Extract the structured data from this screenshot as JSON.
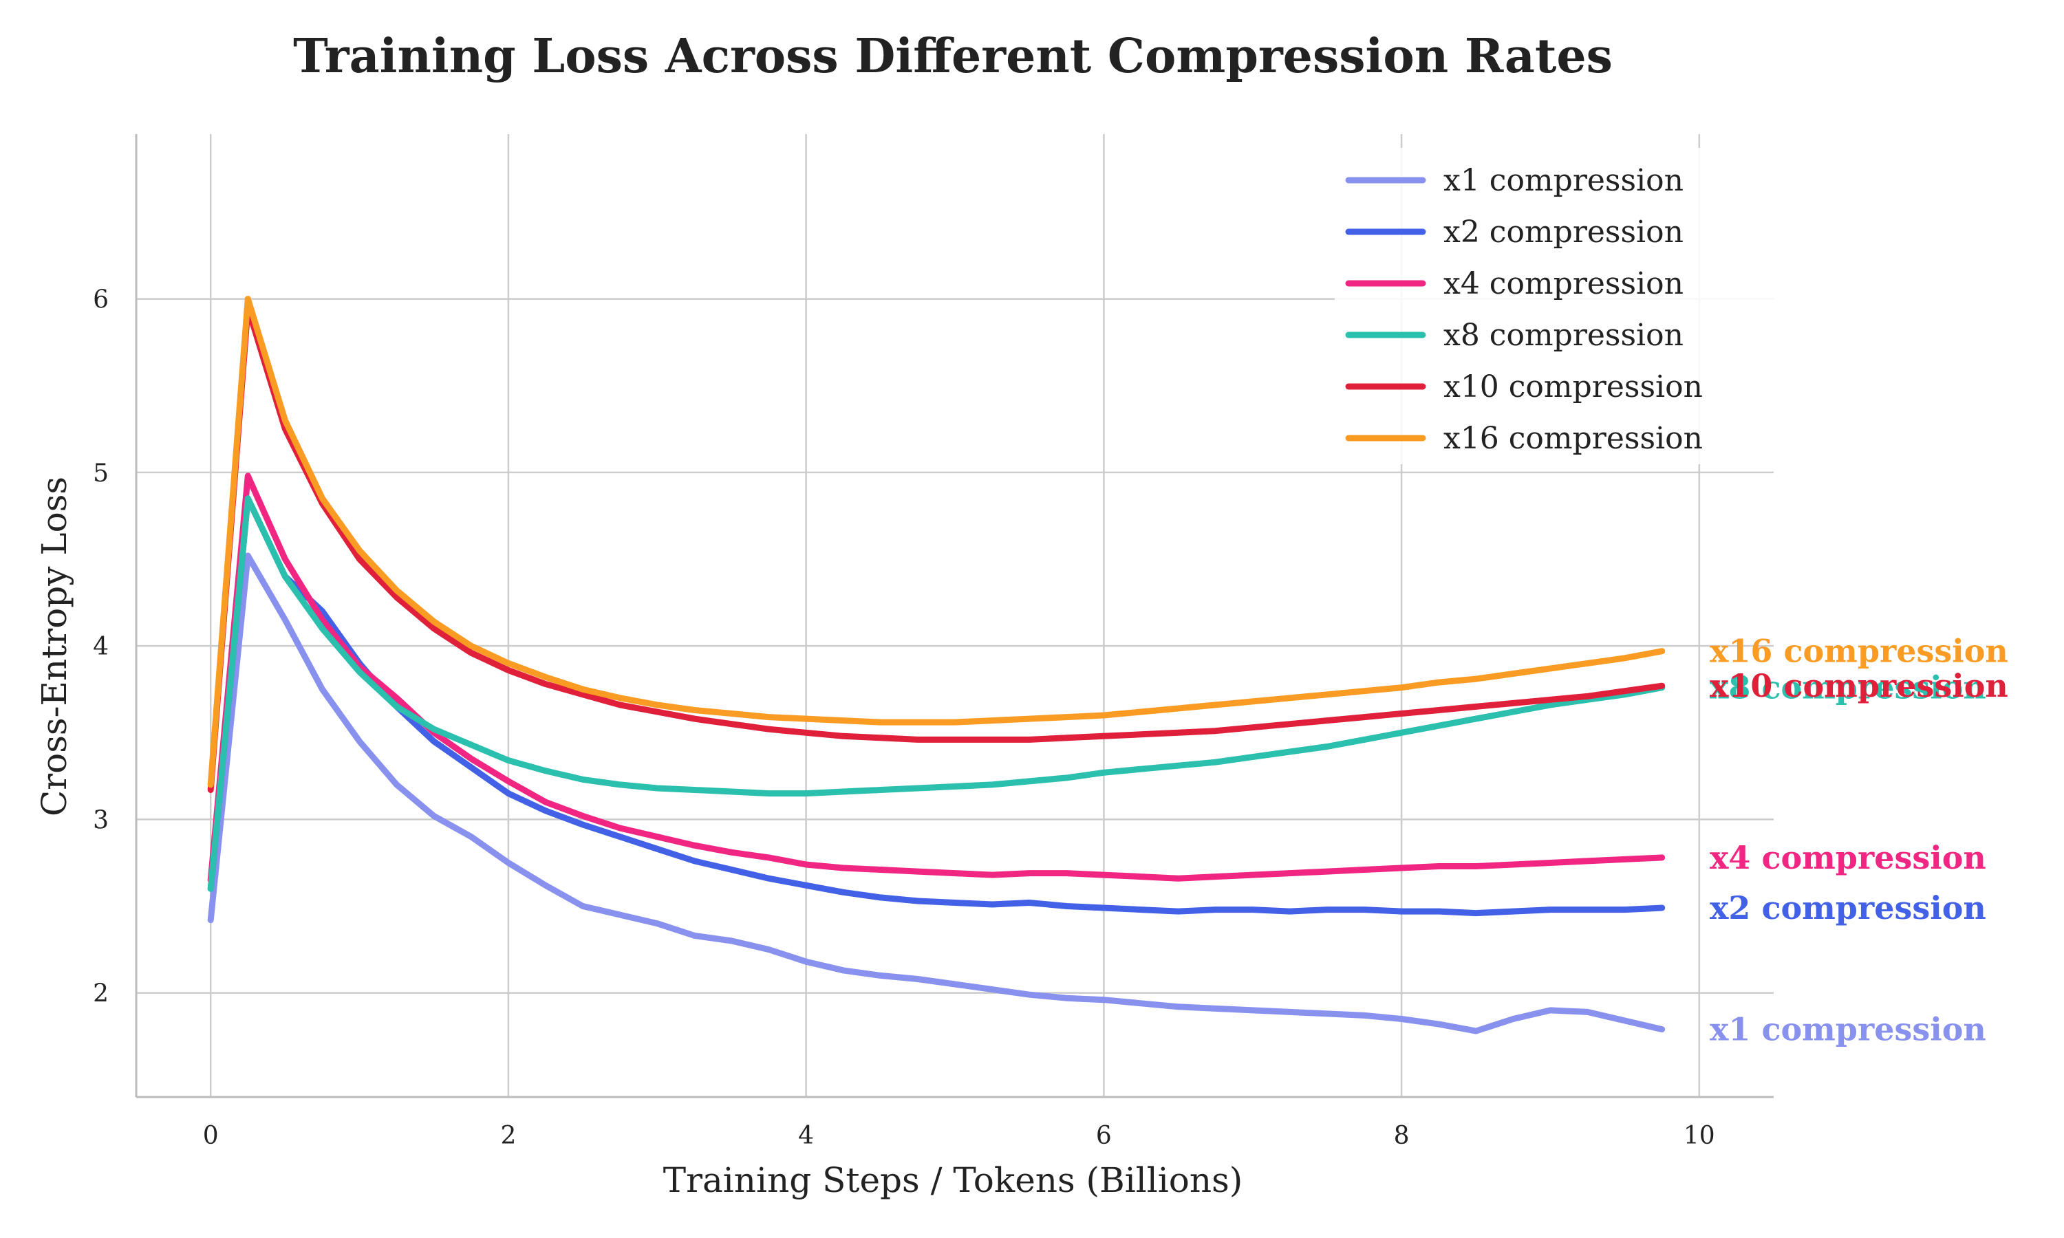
{
  "chart_data": {
    "type": "line",
    "title": "Training Loss Across Different Compression Rates",
    "xlabel": "Training Steps / Tokens (Billions)",
    "ylabel": "Cross-Entropy Loss",
    "xlim": [
      -0.5,
      10.5
    ],
    "ylim": [
      1.4,
      6.95
    ],
    "xticks": [
      0,
      2,
      4,
      6,
      8,
      10
    ],
    "yticks": [
      2,
      3,
      4,
      5,
      6
    ],
    "grid": true,
    "legend_position": "top-right",
    "series": [
      {
        "name": "x1 compression",
        "end_label": "x1 compression",
        "color": "#8891ee",
        "x": [
          0,
          0.25,
          0.5,
          0.75,
          1.0,
          1.25,
          1.5,
          1.75,
          2.0,
          2.25,
          2.5,
          2.75,
          3.0,
          3.25,
          3.5,
          3.75,
          4.0,
          4.25,
          4.5,
          4.75,
          5.0,
          5.25,
          5.5,
          5.75,
          6.0,
          6.25,
          6.5,
          6.75,
          7.0,
          7.25,
          7.5,
          7.75,
          8.0,
          8.25,
          8.5,
          8.75,
          9.0,
          9.25,
          9.5,
          9.75
        ],
        "y": [
          2.42,
          4.52,
          4.15,
          3.75,
          3.45,
          3.2,
          3.02,
          2.9,
          2.75,
          2.62,
          2.5,
          2.45,
          2.4,
          2.33,
          2.3,
          2.25,
          2.18,
          2.13,
          2.1,
          2.08,
          2.05,
          2.02,
          1.99,
          1.97,
          1.96,
          1.94,
          1.92,
          1.91,
          1.9,
          1.89,
          1.88,
          1.87,
          1.85,
          1.82,
          1.78,
          1.85,
          1.9,
          1.89,
          1.84,
          1.79
        ]
      },
      {
        "name": "x2 compression",
        "end_label": "x2 compression",
        "color": "#4361e6",
        "x": [
          0,
          0.25,
          0.5,
          0.75,
          1.0,
          1.25,
          1.5,
          1.75,
          2.0,
          2.25,
          2.5,
          2.75,
          3.0,
          3.25,
          3.5,
          3.75,
          4.0,
          4.25,
          4.5,
          4.75,
          5.0,
          5.25,
          5.5,
          5.75,
          6.0,
          6.25,
          6.5,
          6.75,
          7.0,
          7.25,
          7.5,
          7.75,
          8.0,
          8.25,
          8.5,
          8.75,
          9.0,
          9.25,
          9.5,
          9.75
        ],
        "y": [
          2.6,
          4.85,
          4.4,
          4.2,
          3.9,
          3.65,
          3.45,
          3.3,
          3.15,
          3.05,
          2.97,
          2.9,
          2.83,
          2.76,
          2.71,
          2.66,
          2.62,
          2.58,
          2.55,
          2.53,
          2.52,
          2.51,
          2.52,
          2.5,
          2.49,
          2.48,
          2.47,
          2.48,
          2.48,
          2.47,
          2.48,
          2.48,
          2.47,
          2.47,
          2.46,
          2.47,
          2.48,
          2.48,
          2.48,
          2.49
        ]
      },
      {
        "name": "x4 compression",
        "end_label": "x4 compression",
        "color": "#f02682",
        "x": [
          0,
          0.25,
          0.5,
          0.75,
          1.0,
          1.25,
          1.5,
          1.75,
          2.0,
          2.25,
          2.5,
          2.75,
          3.0,
          3.25,
          3.5,
          3.75,
          4.0,
          4.25,
          4.5,
          4.75,
          5.0,
          5.25,
          5.5,
          5.75,
          6.0,
          6.25,
          6.5,
          6.75,
          7.0,
          7.25,
          7.5,
          7.75,
          8.0,
          8.25,
          8.5,
          8.75,
          9.0,
          9.25,
          9.5,
          9.75
        ],
        "y": [
          2.65,
          4.98,
          4.5,
          4.15,
          3.88,
          3.7,
          3.5,
          3.35,
          3.22,
          3.1,
          3.02,
          2.95,
          2.9,
          2.85,
          2.81,
          2.78,
          2.74,
          2.72,
          2.71,
          2.7,
          2.69,
          2.68,
          2.69,
          2.69,
          2.68,
          2.67,
          2.66,
          2.67,
          2.68,
          2.69,
          2.7,
          2.71,
          2.72,
          2.73,
          2.73,
          2.74,
          2.75,
          2.76,
          2.77,
          2.78
        ]
      },
      {
        "name": "x8 compression",
        "end_label": "x8 compression",
        "color": "#2bbfad",
        "x": [
          0,
          0.25,
          0.5,
          0.75,
          1.0,
          1.25,
          1.5,
          1.75,
          2.0,
          2.25,
          2.5,
          2.75,
          3.0,
          3.25,
          3.5,
          3.75,
          4.0,
          4.25,
          4.5,
          4.75,
          5.0,
          5.25,
          5.5,
          5.75,
          6.0,
          6.25,
          6.5,
          6.75,
          7.0,
          7.25,
          7.5,
          7.75,
          8.0,
          8.25,
          8.5,
          8.75,
          9.0,
          9.25,
          9.5,
          9.75
        ],
        "y": [
          2.6,
          4.85,
          4.4,
          4.1,
          3.85,
          3.65,
          3.52,
          3.43,
          3.34,
          3.28,
          3.23,
          3.2,
          3.18,
          3.17,
          3.16,
          3.15,
          3.15,
          3.16,
          3.17,
          3.18,
          3.19,
          3.2,
          3.22,
          3.24,
          3.27,
          3.29,
          3.31,
          3.33,
          3.36,
          3.39,
          3.42,
          3.46,
          3.5,
          3.54,
          3.58,
          3.62,
          3.66,
          3.69,
          3.72,
          3.76
        ]
      },
      {
        "name": "x10 compression",
        "end_label": "x10 compression",
        "color": "#e0203a",
        "x": [
          0,
          0.25,
          0.5,
          0.75,
          1.0,
          1.25,
          1.5,
          1.75,
          2.0,
          2.25,
          2.5,
          2.75,
          3.0,
          3.25,
          3.5,
          3.75,
          4.0,
          4.25,
          4.5,
          4.75,
          5.0,
          5.25,
          5.5,
          5.75,
          6.0,
          6.25,
          6.5,
          6.75,
          7.0,
          7.25,
          7.5,
          7.75,
          8.0,
          8.25,
          8.5,
          8.75,
          9.0,
          9.25,
          9.5,
          9.75
        ],
        "y": [
          3.17,
          5.95,
          5.25,
          4.82,
          4.5,
          4.28,
          4.1,
          3.96,
          3.86,
          3.78,
          3.72,
          3.66,
          3.62,
          3.58,
          3.55,
          3.52,
          3.5,
          3.48,
          3.47,
          3.46,
          3.46,
          3.46,
          3.46,
          3.47,
          3.48,
          3.49,
          3.5,
          3.51,
          3.53,
          3.55,
          3.57,
          3.59,
          3.61,
          3.63,
          3.65,
          3.67,
          3.69,
          3.71,
          3.74,
          3.77
        ]
      },
      {
        "name": "x16 compression",
        "end_label": "x16 compression",
        "color": "#fa9c23",
        "x": [
          0,
          0.25,
          0.5,
          0.75,
          1.0,
          1.25,
          1.5,
          1.75,
          2.0,
          2.25,
          2.5,
          2.75,
          3.0,
          3.25,
          3.5,
          3.75,
          4.0,
          4.25,
          4.5,
          4.75,
          5.0,
          5.25,
          5.5,
          5.75,
          6.0,
          6.25,
          6.5,
          6.75,
          7.0,
          7.25,
          7.5,
          7.75,
          8.0,
          8.25,
          8.5,
          8.75,
          9.0,
          9.25,
          9.5,
          9.75
        ],
        "y": [
          3.2,
          6.0,
          5.3,
          4.85,
          4.55,
          4.32,
          4.14,
          4.0,
          3.9,
          3.82,
          3.75,
          3.7,
          3.66,
          3.63,
          3.61,
          3.59,
          3.58,
          3.57,
          3.56,
          3.56,
          3.56,
          3.57,
          3.58,
          3.59,
          3.6,
          3.62,
          3.64,
          3.66,
          3.68,
          3.7,
          3.72,
          3.74,
          3.76,
          3.79,
          3.81,
          3.84,
          3.87,
          3.9,
          3.93,
          3.97
        ]
      }
    ]
  }
}
